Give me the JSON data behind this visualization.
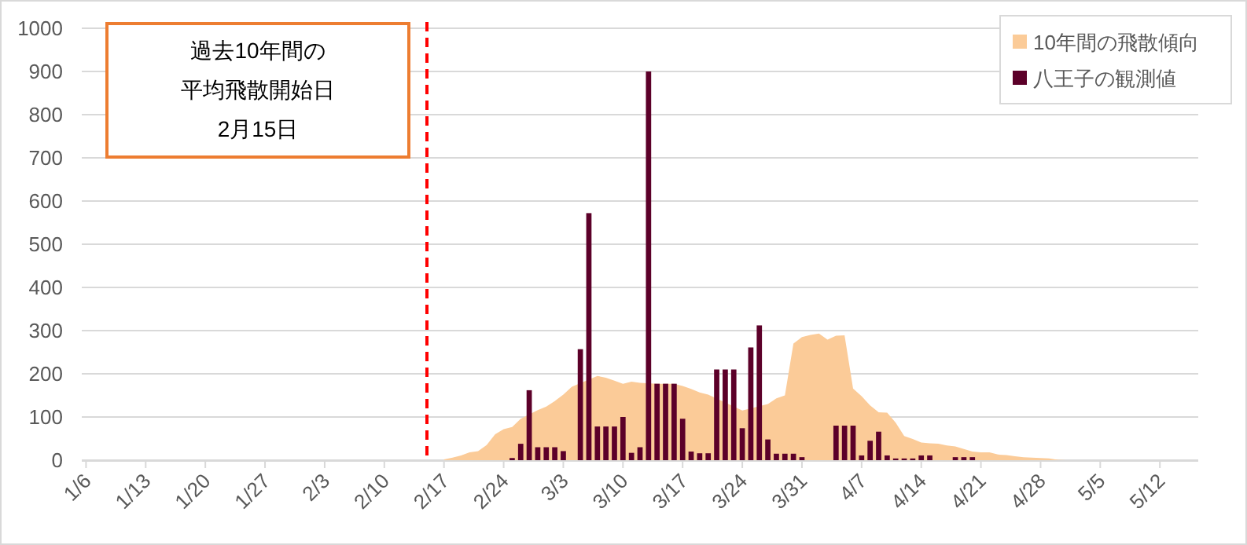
{
  "chart_data": {
    "type": "bar",
    "series": [
      {
        "name": "10年間の飛散傾向",
        "type": "area",
        "color": "#fbcb98",
        "x": [
          "--02-17",
          "--02-18",
          "--02-19",
          "--02-20",
          "--02-21",
          "--02-22",
          "--02-23",
          "--02-24",
          "--02-25",
          "--02-26",
          "--02-28",
          "--03-01",
          "--03-02",
          "--03-03",
          "--03-04",
          "--03-07",
          "--03-08",
          "--03-09",
          "--03-10",
          "--03-11",
          "--03-12",
          "--03-14",
          "--03-15",
          "--03-16",
          "--03-17",
          "--03-18",
          "--03-19",
          "--03-20",
          "--03-24",
          "--03-27",
          "--03-28",
          "--03-29",
          "--03-30",
          "--03-31",
          "--04-01",
          "--04-02",
          "--04-03",
          "--04-04",
          "--04-05",
          "--04-06",
          "--04-07",
          "--04-08",
          "--04-09",
          "--04-10",
          "--04-11",
          "--04-12",
          "--04-13",
          "--04-14",
          "--04-15",
          "--04-16",
          "--04-17",
          "--04-18",
          "--04-19",
          "--04-20",
          "--04-21",
          "--04-22",
          "--04-23",
          "--04-24",
          "--04-25",
          "--04-26",
          "--04-27",
          "--04-28",
          "--04-29",
          "--04-30",
          "--05-01"
        ],
        "values": [
          2,
          6,
          11,
          18,
          21,
          35,
          60,
          72,
          77,
          96,
          116,
          124,
          137,
          152,
          170,
          195,
          191,
          184,
          177,
          182,
          179,
          177,
          177,
          177,
          172,
          165,
          157,
          152,
          115,
          130,
          143,
          150,
          270,
          285,
          290,
          293,
          279,
          288,
          289,
          166,
          148,
          127,
          111,
          110,
          87,
          56,
          49,
          41,
          39,
          38,
          34,
          32,
          26,
          20,
          18,
          18,
          13,
          12,
          9,
          7,
          6,
          5,
          4,
          1,
          0
        ]
      },
      {
        "name": "八王子の観測値",
        "color": "#5c0029",
        "x": [
          "--02-25",
          "--02-26",
          "--02-27",
          "--02-28",
          "--03-01",
          "--03-02",
          "--03-03",
          "--03-05",
          "--03-06",
          "--03-07",
          "--03-08",
          "--03-09",
          "--03-10",
          "--03-11",
          "--03-12",
          "--03-13",
          "--03-14",
          "--03-15",
          "--03-16",
          "--03-17",
          "--03-18",
          "--03-19",
          "--03-20",
          "--03-21",
          "--03-22",
          "--03-23",
          "--03-24",
          "--03-25",
          "--03-26",
          "--03-27",
          "--03-28",
          "--03-29",
          "--03-30",
          "--03-31",
          "--04-04",
          "--04-05",
          "--04-06",
          "--04-07",
          "--04-08",
          "--04-09",
          "--04-10",
          "--04-11",
          "--04-12",
          "--04-13",
          "--04-14",
          "--04-15",
          "--04-18",
          "--04-19",
          "--04-20"
        ],
        "values": [
          5,
          38,
          162,
          30,
          30,
          30,
          21,
          257,
          572,
          78,
          78,
          78,
          100,
          17,
          30,
          900,
          177,
          177,
          177,
          96,
          20,
          16,
          16,
          210,
          210,
          210,
          74,
          261,
          312,
          48,
          15,
          15,
          15,
          7,
          80,
          80,
          80,
          11,
          45,
          66,
          11,
          4,
          4,
          4,
          11,
          11,
          7,
          7,
          7
        ]
      }
    ],
    "xlim": [
      "--01-06",
      "--05-16"
    ],
    "xticks": [
      {
        "value": "--01-06",
        "label": "1/6"
      },
      {
        "value": "--01-13",
        "label": "1/13"
      },
      {
        "value": "--01-20",
        "label": "1/20"
      },
      {
        "value": "--01-27",
        "label": "1/27"
      },
      {
        "value": "--02-03",
        "label": "2/3"
      },
      {
        "value": "--02-10",
        "label": "2/10"
      },
      {
        "value": "--02-17",
        "label": "2/17"
      },
      {
        "value": "--02-24",
        "label": "2/24"
      },
      {
        "value": "--03-03",
        "label": "3/3"
      },
      {
        "value": "--03-10",
        "label": "3/10"
      },
      {
        "value": "--03-17",
        "label": "3/17"
      },
      {
        "value": "--03-24",
        "label": "3/24"
      },
      {
        "value": "--03-31",
        "label": "3/31"
      },
      {
        "value": "--04-07",
        "label": "4/7"
      },
      {
        "value": "--04-14",
        "label": "4/14"
      },
      {
        "value": "--04-21",
        "label": "4/21"
      },
      {
        "value": "--04-28",
        "label": "4/28"
      },
      {
        "value": "--05-05",
        "label": "5/5"
      },
      {
        "value": "--05-12",
        "label": "5/12"
      }
    ],
    "ylim": [
      0,
      1000
    ],
    "yticks": [
      0,
      100,
      200,
      300,
      400,
      500,
      600,
      700,
      800,
      900,
      1000
    ],
    "grid": "y",
    "legend": "top right",
    "ref_lines": [
      {
        "axis": "x",
        "value": "--02-15",
        "color": "#ff0000",
        "line_style": "dashed"
      }
    ],
    "annotations": [
      "過去10年間の",
      "平均飛散開始日",
      "2月15日"
    ]
  }
}
